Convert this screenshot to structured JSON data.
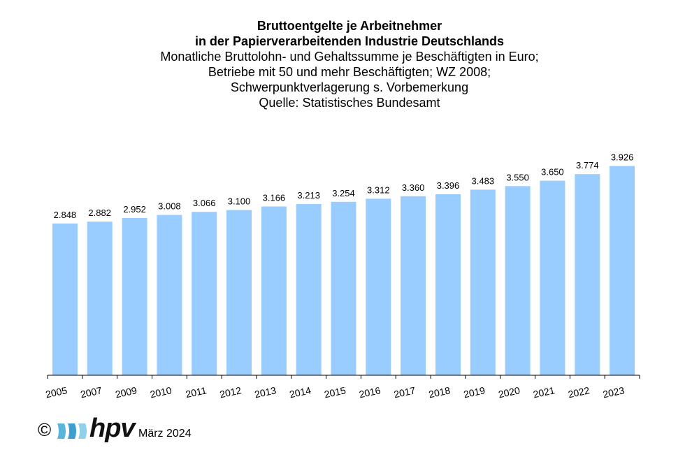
{
  "header": {
    "title_line1": "Bruttoentgelte je Arbeitnehmer",
    "title_line2": "in der Papierverarbeitenden Industrie Deutschlands",
    "subtitle_line1": "Monatliche Bruttolohn- und Gehaltssumme je Beschäftigten in Euro;",
    "subtitle_line2": "Betriebe mit 50 und mehr Beschäftigten; WZ 2008;",
    "subtitle_line3": "Schwerpunktverlagerung s. Vorbemerkung",
    "subtitle_line4": "Quelle: Statistisches Bundesamt"
  },
  "footer": {
    "copyright_symbol": "©",
    "logo_text": "hpv",
    "date": "März 2024"
  },
  "colors": {
    "bar": "#99CCFF",
    "axis": "#000000"
  },
  "chart_data": {
    "type": "bar",
    "categories": [
      "2005",
      "2007",
      "2009",
      "2010",
      "2011",
      "2012",
      "2013",
      "2014",
      "2015",
      "2016",
      "2017",
      "2018",
      "2019",
      "2020",
      "2021",
      "2022",
      "2023"
    ],
    "values": [
      2848,
      2882,
      2952,
      3008,
      3066,
      3100,
      3166,
      3213,
      3254,
      3312,
      3360,
      3396,
      3483,
      3550,
      3650,
      3774,
      3926
    ],
    "data_labels": [
      "2.848",
      "2.882",
      "2.952",
      "3.008",
      "3.066",
      "3.100",
      "3.166",
      "3.213",
      "3.254",
      "3.312",
      "3.360",
      "3.396",
      "3.483",
      "3.550",
      "3.650",
      "3.774",
      "3.926"
    ],
    "ylim": [
      0,
      4550
    ],
    "grid": false,
    "legend": "none"
  }
}
